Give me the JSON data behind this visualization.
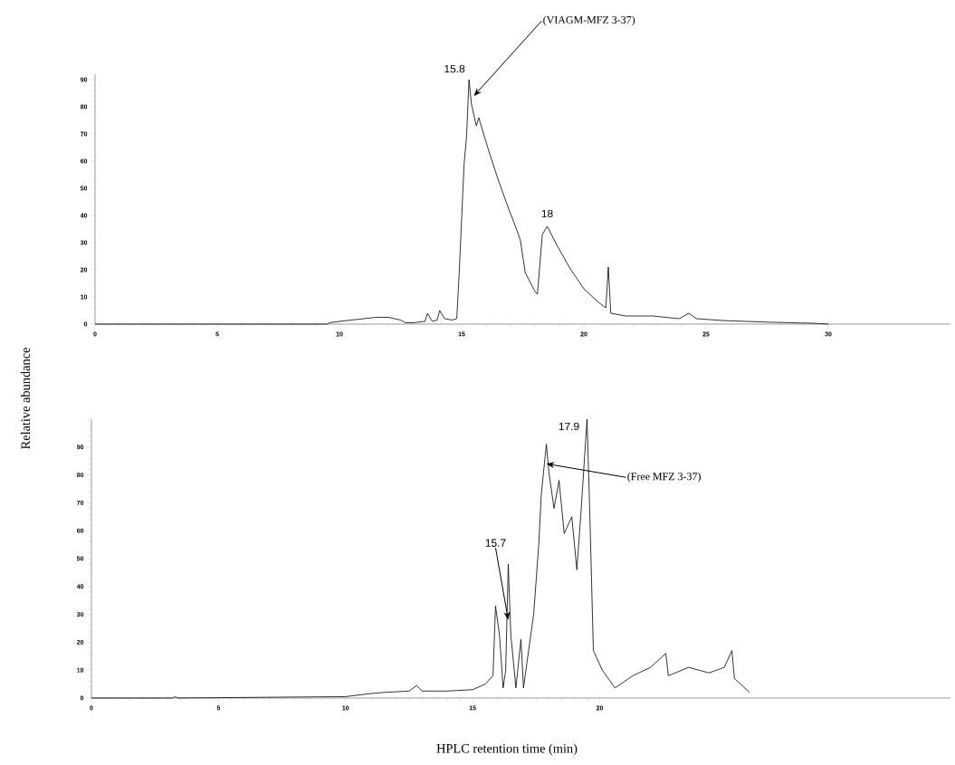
{
  "chart_data": [
    {
      "type": "line",
      "ylabel": "Relative abundance",
      "color": "#000000",
      "x": [
        0,
        9.5,
        9.6,
        10,
        10.5,
        11,
        11.5,
        12,
        12.5,
        12.7,
        13,
        13.5,
        13.6,
        13.8,
        14,
        14.1,
        14.3,
        14.6,
        14.8,
        14.9,
        15.0,
        15.1,
        15.2,
        15.3,
        15.4,
        15.6,
        15.7,
        16.1,
        16.5,
        16.9,
        17.2,
        17.4,
        17.6,
        18.0,
        18.1,
        18.3,
        18.5,
        18.9,
        19.4,
        20.0,
        20.6,
        20.9,
        21.0,
        21.1,
        21.7,
        22.8,
        23.9,
        24.3,
        24.6,
        25.7,
        27.6,
        29.4,
        30
      ],
      "values": [
        0,
        0,
        0.5,
        1,
        1.5,
        2,
        2.5,
        2.5,
        1.5,
        0.5,
        0.5,
        1,
        4,
        1,
        1.5,
        5,
        2,
        1.5,
        2,
        19,
        39,
        59,
        69,
        90,
        81,
        73,
        76,
        64,
        53,
        43,
        36,
        31,
        19,
        12,
        11,
        33,
        36,
        29,
        21,
        13,
        8,
        6,
        21,
        4,
        3,
        3,
        2,
        4,
        2,
        1.3,
        0.7,
        0.3,
        0
      ],
      "xlim": [
        0,
        35
      ],
      "xticks": [
        0,
        5,
        10,
        15,
        20,
        25,
        30
      ],
      "ylim": [
        0,
        92
      ],
      "yticks": [
        0,
        10,
        20,
        30,
        40,
        50,
        60,
        70,
        80,
        90
      ],
      "annotations": [
        {
          "text": "15.8",
          "x": 15.3,
          "y": 90
        },
        {
          "text": "(VIAGM-MFZ 3-37)",
          "x": 15.5,
          "y": 84
        },
        {
          "text": "18",
          "x": 18.5,
          "y": 36
        }
      ]
    },
    {
      "type": "line",
      "xlabel": "HPLC retention time (min)",
      "color": "#000000",
      "x": [
        0,
        3.2,
        3.3,
        3.4,
        10.0,
        10.9,
        11.5,
        12.5,
        12.8,
        13,
        14,
        15,
        15.5,
        15.8,
        15.9,
        16.05,
        16.2,
        16.3,
        16.4,
        16.5,
        16.7,
        16.9,
        17.0,
        17.2,
        17.4,
        17.6,
        17.7,
        17.9,
        18.0,
        18.2,
        18.4,
        18.6,
        18.9,
        19.1,
        19.25,
        19.5,
        19.6,
        19.75,
        20.1,
        20.6,
        21.3,
        22.0,
        22.6,
        22.7,
        23.5,
        24.3,
        24.9,
        25.2,
        25.3,
        25.9
      ],
      "values": [
        0,
        0,
        0.5,
        0,
        0.5,
        1.5,
        2,
        2.5,
        4.5,
        2.5,
        2.5,
        3,
        5,
        8,
        33,
        23,
        3.6,
        10,
        48,
        23,
        3.6,
        21,
        3.6,
        17,
        30,
        55,
        73,
        91,
        81,
        68,
        78,
        59,
        65,
        46,
        65,
        100,
        69,
        17,
        10,
        3.6,
        8,
        11,
        16,
        8,
        11,
        9,
        11,
        17,
        7,
        2
      ],
      "xlim": [
        0,
        33.8
      ],
      "xticks": [
        0,
        5,
        10,
        15,
        20
      ],
      "ylim": [
        0,
        100
      ],
      "yticks": [
        0,
        10,
        20,
        30,
        40,
        50,
        60,
        70,
        80,
        90,
        {
          "value": 100,
          "label": null
        }
      ],
      "annotations": [
        {
          "text": "17.9",
          "x": 19.5,
          "y": 100
        },
        {
          "text": "(Free MFZ 3-37)",
          "x": 17.9,
          "y": 84
        },
        {
          "text": "15.7",
          "x": 16.4,
          "y": 28
        }
      ]
    }
  ]
}
